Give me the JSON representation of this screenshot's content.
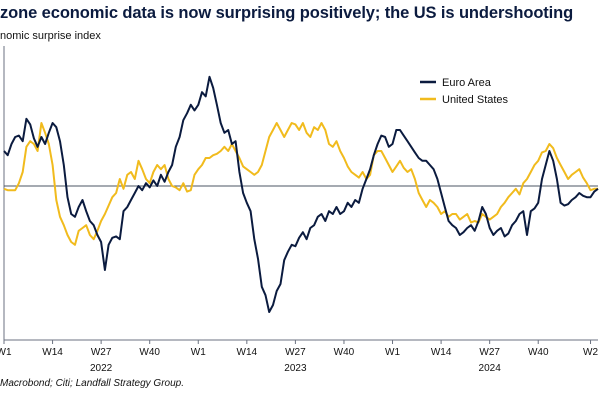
{
  "title": "zone economic data is now surprising positively; the US is undershooting",
  "subtitle": "nomic surprise index",
  "source": "Macrobond; Citi; Landfall Strategy Group.",
  "chart_data": {
    "type": "line",
    "title": "zone economic data is now surprising positively; the US is undershooting",
    "ylabel": "nomic surprise index",
    "x_tick_labels": [
      "W1",
      "W14",
      "W27",
      "W40",
      "W1",
      "W14",
      "W27",
      "W40",
      "W1",
      "W14",
      "W27",
      "W40",
      "W2"
    ],
    "x_tick_positions": [
      0,
      13,
      26,
      39,
      52,
      65,
      78,
      91,
      104,
      117,
      130,
      143,
      157
    ],
    "year_labels": [
      {
        "label": "2022",
        "position": 26
      },
      {
        "label": "2023",
        "position": 78
      },
      {
        "label": "2024",
        "position": 130
      }
    ],
    "x_range": [
      0,
      159
    ],
    "y_range": [
      -110,
      100
    ],
    "zero_line": 0,
    "legend_position": "top-right",
    "series": [
      {
        "name": "Euro Area",
        "color": "#0b1b3f",
        "points": [
          [
            0,
            25
          ],
          [
            1,
            22
          ],
          [
            2,
            30
          ],
          [
            3,
            35
          ],
          [
            4,
            36
          ],
          [
            5,
            32
          ],
          [
            6,
            48
          ],
          [
            7,
            44
          ],
          [
            8,
            34
          ],
          [
            9,
            28
          ],
          [
            10,
            35
          ],
          [
            11,
            30
          ],
          [
            12,
            38
          ],
          [
            13,
            45
          ],
          [
            14,
            42
          ],
          [
            15,
            32
          ],
          [
            16,
            15
          ],
          [
            17,
            -8
          ],
          [
            18,
            -20
          ],
          [
            19,
            -22
          ],
          [
            20,
            -15
          ],
          [
            21,
            -10
          ],
          [
            22,
            -18
          ],
          [
            23,
            -25
          ],
          [
            24,
            -28
          ],
          [
            25,
            -35
          ],
          [
            26,
            -40
          ],
          [
            27,
            -60
          ],
          [
            28,
            -42
          ],
          [
            29,
            -37
          ],
          [
            30,
            -36
          ],
          [
            31,
            -38
          ],
          [
            32,
            -18
          ],
          [
            33,
            -15
          ],
          [
            34,
            -10
          ],
          [
            35,
            -5
          ],
          [
            36,
            0
          ],
          [
            37,
            -3
          ],
          [
            38,
            2
          ],
          [
            39,
            -1
          ],
          [
            40,
            4
          ],
          [
            41,
            0
          ],
          [
            42,
            8
          ],
          [
            43,
            3
          ],
          [
            44,
            10
          ],
          [
            45,
            15
          ],
          [
            46,
            28
          ],
          [
            47,
            35
          ],
          [
            48,
            47
          ],
          [
            49,
            52
          ],
          [
            50,
            58
          ],
          [
            51,
            54
          ],
          [
            52,
            58
          ],
          [
            53,
            67
          ],
          [
            54,
            64
          ],
          [
            55,
            78
          ],
          [
            56,
            70
          ],
          [
            57,
            58
          ],
          [
            58,
            45
          ],
          [
            59,
            38
          ],
          [
            60,
            40
          ],
          [
            61,
            30
          ],
          [
            62,
            32
          ],
          [
            63,
            10
          ],
          [
            64,
            -5
          ],
          [
            65,
            -12
          ],
          [
            66,
            -18
          ],
          [
            67,
            -38
          ],
          [
            68,
            -52
          ],
          [
            69,
            -72
          ],
          [
            70,
            -78
          ],
          [
            71,
            -90
          ],
          [
            72,
            -85
          ],
          [
            73,
            -75
          ],
          [
            74,
            -70
          ],
          [
            75,
            -53
          ],
          [
            76,
            -47
          ],
          [
            77,
            -42
          ],
          [
            78,
            -43
          ],
          [
            79,
            -37
          ],
          [
            80,
            -33
          ],
          [
            81,
            -38
          ],
          [
            82,
            -30
          ],
          [
            83,
            -28
          ],
          [
            84,
            -22
          ],
          [
            85,
            -20
          ],
          [
            86,
            -25
          ],
          [
            87,
            -18
          ],
          [
            88,
            -20
          ],
          [
            89,
            -15
          ],
          [
            90,
            -20
          ],
          [
            91,
            -18
          ],
          [
            92,
            -12
          ],
          [
            93,
            -15
          ],
          [
            94,
            -10
          ],
          [
            95,
            -12
          ],
          [
            96,
            -2
          ],
          [
            97,
            5
          ],
          [
            98,
            12
          ],
          [
            99,
            22
          ],
          [
            100,
            30
          ],
          [
            101,
            36
          ],
          [
            102,
            35
          ],
          [
            103,
            28
          ],
          [
            104,
            30
          ],
          [
            105,
            40
          ],
          [
            106,
            40
          ],
          [
            107,
            36
          ],
          [
            108,
            32
          ],
          [
            109,
            28
          ],
          [
            110,
            24
          ],
          [
            111,
            20
          ],
          [
            112,
            18
          ],
          [
            113,
            18
          ],
          [
            114,
            15
          ],
          [
            115,
            12
          ],
          [
            116,
            5
          ],
          [
            117,
            -5
          ],
          [
            118,
            -15
          ],
          [
            119,
            -25
          ],
          [
            120,
            -28
          ],
          [
            121,
            -30
          ],
          [
            122,
            -35
          ],
          [
            123,
            -33
          ],
          [
            124,
            -30
          ],
          [
            125,
            -28
          ],
          [
            126,
            -32
          ],
          [
            127,
            -25
          ],
          [
            128,
            -15
          ],
          [
            129,
            -20
          ],
          [
            130,
            -30
          ],
          [
            131,
            -35
          ],
          [
            132,
            -32
          ],
          [
            133,
            -30
          ],
          [
            134,
            -36
          ],
          [
            135,
            -34
          ],
          [
            136,
            -28
          ],
          [
            137,
            -25
          ],
          [
            138,
            -20
          ],
          [
            139,
            -18
          ],
          [
            140,
            -35
          ],
          [
            141,
            -18
          ],
          [
            142,
            -16
          ],
          [
            143,
            -12
          ],
          [
            144,
            5
          ],
          [
            145,
            15
          ],
          [
            146,
            25
          ],
          [
            147,
            18
          ],
          [
            148,
            5
          ],
          [
            149,
            -12
          ],
          [
            150,
            -14
          ],
          [
            151,
            -13
          ],
          [
            152,
            -10
          ],
          [
            153,
            -8
          ],
          [
            154,
            -5
          ],
          [
            155,
            -7
          ],
          [
            156,
            -8
          ],
          [
            157,
            -8
          ],
          [
            158,
            -4
          ],
          [
            159,
            -2
          ]
        ]
      },
      {
        "name": "United States",
        "color": "#f1bb1d",
        "points": [
          [
            0,
            -2
          ],
          [
            1,
            -3
          ],
          [
            2,
            -3
          ],
          [
            3,
            -3
          ],
          [
            4,
            2
          ],
          [
            5,
            10
          ],
          [
            6,
            28
          ],
          [
            7,
            32
          ],
          [
            8,
            30
          ],
          [
            9,
            25
          ],
          [
            10,
            45
          ],
          [
            11,
            38
          ],
          [
            12,
            30
          ],
          [
            13,
            15
          ],
          [
            14,
            -10
          ],
          [
            15,
            -22
          ],
          [
            16,
            -28
          ],
          [
            17,
            -35
          ],
          [
            18,
            -40
          ],
          [
            19,
            -42
          ],
          [
            20,
            -32
          ],
          [
            21,
            -30
          ],
          [
            22,
            -28
          ],
          [
            23,
            -35
          ],
          [
            24,
            -38
          ],
          [
            25,
            -32
          ],
          [
            26,
            -25
          ],
          [
            27,
            -20
          ],
          [
            28,
            -14
          ],
          [
            29,
            -8
          ],
          [
            30,
            -5
          ],
          [
            31,
            5
          ],
          [
            32,
            -2
          ],
          [
            33,
            8
          ],
          [
            34,
            10
          ],
          [
            35,
            5
          ],
          [
            36,
            18
          ],
          [
            37,
            12
          ],
          [
            38,
            5
          ],
          [
            39,
            2
          ],
          [
            40,
            10
          ],
          [
            41,
            15
          ],
          [
            42,
            12
          ],
          [
            43,
            15
          ],
          [
            44,
            5
          ],
          [
            45,
            0
          ],
          [
            46,
            -1
          ],
          [
            47,
            -3
          ],
          [
            48,
            2
          ],
          [
            49,
            -4
          ],
          [
            50,
            -3
          ],
          [
            51,
            8
          ],
          [
            52,
            12
          ],
          [
            53,
            15
          ],
          [
            54,
            20
          ],
          [
            55,
            20
          ],
          [
            56,
            22
          ],
          [
            57,
            23
          ],
          [
            58,
            25
          ],
          [
            59,
            28
          ],
          [
            60,
            25
          ],
          [
            61,
            30
          ],
          [
            62,
            25
          ],
          [
            63,
            20
          ],
          [
            64,
            14
          ],
          [
            65,
            12
          ],
          [
            66,
            10
          ],
          [
            67,
            8
          ],
          [
            68,
            10
          ],
          [
            69,
            15
          ],
          [
            70,
            25
          ],
          [
            71,
            35
          ],
          [
            72,
            40
          ],
          [
            73,
            45
          ],
          [
            74,
            40
          ],
          [
            75,
            35
          ],
          [
            76,
            40
          ],
          [
            77,
            45
          ],
          [
            78,
            44
          ],
          [
            79,
            40
          ],
          [
            80,
            45
          ],
          [
            81,
            38
          ],
          [
            82,
            35
          ],
          [
            83,
            42
          ],
          [
            84,
            40
          ],
          [
            85,
            45
          ],
          [
            86,
            40
          ],
          [
            87,
            30
          ],
          [
            88,
            28
          ],
          [
            89,
            32
          ],
          [
            90,
            25
          ],
          [
            91,
            20
          ],
          [
            92,
            14
          ],
          [
            93,
            10
          ],
          [
            94,
            8
          ],
          [
            95,
            6
          ],
          [
            96,
            10
          ],
          [
            97,
            5
          ],
          [
            98,
            8
          ],
          [
            99,
            22
          ],
          [
            100,
            25
          ],
          [
            101,
            25
          ],
          [
            102,
            20
          ],
          [
            103,
            15
          ],
          [
            104,
            10
          ],
          [
            105,
            14
          ],
          [
            106,
            18
          ],
          [
            107,
            13
          ],
          [
            108,
            10
          ],
          [
            109,
            12
          ],
          [
            110,
            5
          ],
          [
            111,
            -5
          ],
          [
            112,
            -10
          ],
          [
            113,
            -15
          ],
          [
            114,
            -10
          ],
          [
            115,
            -12
          ],
          [
            116,
            -15
          ],
          [
            117,
            -20
          ],
          [
            118,
            -18
          ],
          [
            119,
            -22
          ],
          [
            120,
            -20
          ],
          [
            121,
            -20
          ],
          [
            122,
            -24
          ],
          [
            123,
            -22
          ],
          [
            124,
            -20
          ],
          [
            125,
            -26
          ],
          [
            126,
            -25
          ],
          [
            127,
            -26
          ],
          [
            128,
            -20
          ],
          [
            129,
            -22
          ],
          [
            130,
            -24
          ],
          [
            131,
            -22
          ],
          [
            132,
            -20
          ],
          [
            133,
            -15
          ],
          [
            134,
            -12
          ],
          [
            135,
            -8
          ],
          [
            136,
            -5
          ],
          [
            137,
            -2
          ],
          [
            138,
            -6
          ],
          [
            139,
            2
          ],
          [
            140,
            5
          ],
          [
            141,
            10
          ],
          [
            142,
            15
          ],
          [
            143,
            18
          ],
          [
            144,
            24
          ],
          [
            145,
            25
          ],
          [
            146,
            30
          ],
          [
            147,
            27
          ],
          [
            148,
            20
          ],
          [
            149,
            15
          ],
          [
            150,
            10
          ],
          [
            151,
            5
          ],
          [
            152,
            8
          ],
          [
            153,
            10
          ],
          [
            154,
            12
          ],
          [
            155,
            6
          ],
          [
            156,
            2
          ],
          [
            157,
            -3
          ],
          [
            158,
            -2
          ],
          [
            159,
            -2
          ]
        ]
      }
    ]
  }
}
